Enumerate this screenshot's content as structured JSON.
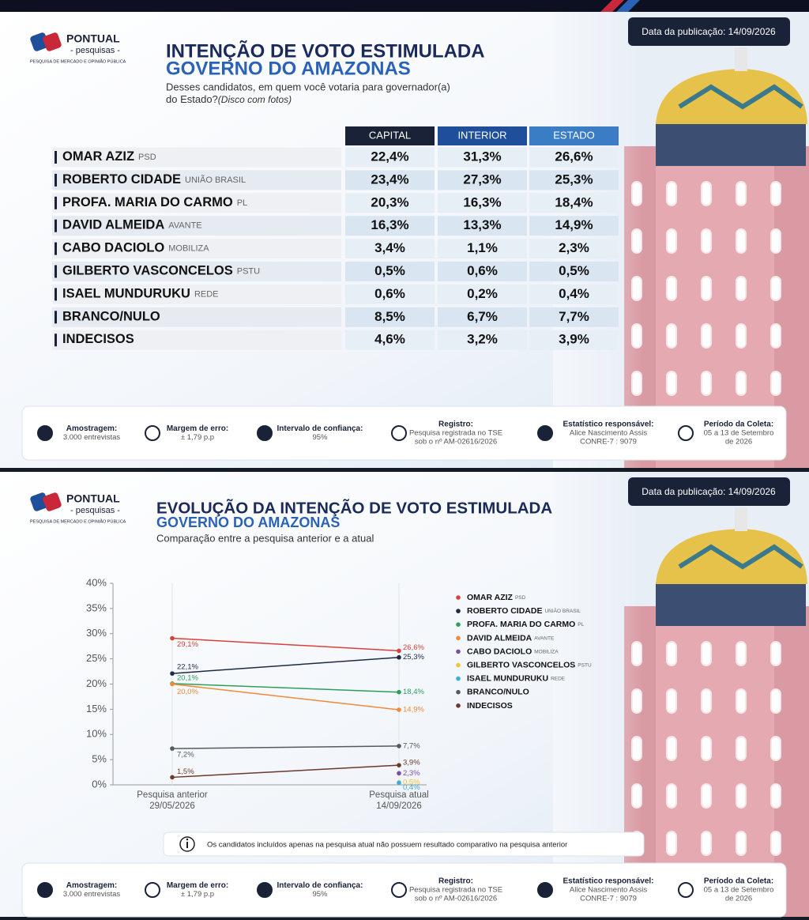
{
  "logo": {
    "name": "PONTUAL",
    "tagline": "- pesquisas -",
    "claim": "PESQUISA DE MERCADO E OPINIÃO PÚBLICA"
  },
  "publication_date": "Data da publicação: 14/09/2026",
  "table_slide": {
    "title": "INTENÇÃO DE VOTO ESTIMULADA",
    "title_line2": "GOVERNO DO AMAZONAS",
    "question": [
      "Desses candidatos, em quem você votaria para governador(a)",
      "do Estado?"
    ],
    "question_note": "(Disco com fotos)",
    "table": {
      "headers": [
        "CAPITAL",
        "INTERIOR",
        "ESTADO"
      ],
      "rows": [
        {
          "name": "OMAR AZIZ",
          "party": "PSD",
          "values": [
            "22,4%",
            "31,3%",
            "26,6%"
          ]
        },
        {
          "name": "ROBERTO CIDADE",
          "party": "UNIÃO BRASIL",
          "values": [
            "23,4%",
            "27,3%",
            "25,3%"
          ]
        },
        {
          "name": "PROFA. MARIA DO CARMO",
          "party": "PL",
          "values": [
            "20,3%",
            "16,3%",
            "18,4%"
          ]
        },
        {
          "name": "DAVID ALMEIDA",
          "party": "AVANTE",
          "values": [
            "16,3%",
            "13,3%",
            "14,9%"
          ]
        },
        {
          "name": "CABO DACIOLO",
          "party": "MOBILIZA",
          "values": [
            "3,4%",
            "1,1%",
            "2,3%"
          ]
        },
        {
          "name": "GILBERTO VASCONCELOS",
          "party": "PSTU",
          "values": [
            "0,5%",
            "0,6%",
            "0,5%"
          ]
        },
        {
          "name": "ISAEL MUNDURUKU",
          "party": "REDE",
          "values": [
            "0,6%",
            "0,2%",
            "0,4%"
          ]
        },
        {
          "name": "BRANCO/NULO",
          "party": null,
          "values": [
            "8,5%",
            "6,7%",
            "7,7%"
          ]
        },
        {
          "name": "INDECISOS",
          "party": null,
          "values": [
            "4,6%",
            "3,2%",
            "3,9%"
          ]
        }
      ]
    }
  },
  "chart_data": {
    "type": "line",
    "title": "EVOLUÇÃO DA INTENÇÃO DE VOTO ESTIMULADA",
    "title_line2": "GOVERNO DO AMAZONAS",
    "subtitle": "Comparação entre a pesquisa anterior e a atual",
    "categories": [
      "Pesquisa anterior",
      "Pesquisa atual"
    ],
    "category_dates": [
      "29/05/2026",
      "14/09/2026"
    ],
    "ylim": [
      0,
      40
    ],
    "yticks": [
      {
        "value": 0,
        "label": "0%"
      },
      {
        "value": 5,
        "label": "5%"
      },
      {
        "value": 10,
        "label": "10%"
      },
      {
        "value": 15,
        "label": "15%"
      },
      {
        "value": 20,
        "label": "20%"
      },
      {
        "value": 25,
        "label": "25%"
      },
      {
        "value": 30,
        "label": "30%"
      },
      {
        "value": 35,
        "label": "35%"
      },
      {
        "value": 40,
        "label": "40%"
      }
    ],
    "grid": false,
    "series": [
      {
        "name": "OMAR AZIZ",
        "party": "PSD",
        "color": "#d9403a",
        "values": [
          29.1,
          26.6
        ],
        "value_labels": [
          "29,1%",
          "26,6%"
        ]
      },
      {
        "name": "ROBERTO CIDADE",
        "party": "UNIÃO BRASIL",
        "color": "#1e2a44",
        "values": [
          22.1,
          25.3
        ],
        "value_labels": [
          "22,1%",
          "25,3%"
        ]
      },
      {
        "name": "PROFA. MARIA DO CARMO",
        "party": "PL",
        "color": "#2e9e5b",
        "values": [
          20.1,
          18.4
        ],
        "value_labels": [
          "20,1%",
          "18,4%"
        ]
      },
      {
        "name": "DAVID ALMEIDA",
        "party": "AVANTE",
        "color": "#f08a3c",
        "values": [
          20.0,
          14.9
        ],
        "value_labels": [
          "20,0%",
          "14,9%"
        ]
      },
      {
        "name": "CABO DACIOLO",
        "party": "MOBILIZA",
        "color": "#7b4fa8",
        "values": [
          null,
          2.3
        ],
        "value_labels": [
          null,
          "2,3%"
        ]
      },
      {
        "name": "GILBERTO VASCONCELOS",
        "party": "PSTU",
        "color": "#f2c23a",
        "values": [
          null,
          0.5
        ],
        "value_labels": [
          null,
          "0,5%"
        ]
      },
      {
        "name": "ISAEL MUNDURUKU",
        "party": "REDE",
        "color": "#3aaee0",
        "values": [
          null,
          0.4
        ],
        "value_labels": [
          null,
          "0,4%"
        ]
      },
      {
        "name": "BRANCO/NULO",
        "party": null,
        "color": "#555a60",
        "values": [
          7.2,
          7.7
        ],
        "value_labels": [
          "7,2%",
          "7,7%"
        ]
      },
      {
        "name": "INDECISOS",
        "party": null,
        "color": "#6b3a2a",
        "values": [
          1.5,
          3.9
        ],
        "value_labels": [
          "1,5%",
          "3,9%"
        ]
      }
    ],
    "note": "Os candidatos incluídos apenas na pesquisa atual não possuem resultado comparativo na pesquisa anterior"
  },
  "footer": [
    {
      "label": "Amostragem:",
      "lines": [
        "3.000 entrevistas"
      ]
    },
    {
      "label": "Margem de erro:",
      "lines": [
        "± 1,79 p.p"
      ]
    },
    {
      "label": "Intervalo de confiança:",
      "lines": [
        "95%"
      ]
    },
    {
      "label": "Registro:",
      "lines": [
        "Pesquisa registrada no TSE",
        "sob o nº AM-02616/2026"
      ]
    },
    {
      "label": "Estatístico responsável:",
      "lines": [
        "Alice Nascimento Assis",
        "CONRE-7 : 9079"
      ]
    },
    {
      "label": "Período da Coleta:",
      "lines": [
        "05 a 13 de Setembro",
        "de 2026"
      ]
    }
  ]
}
